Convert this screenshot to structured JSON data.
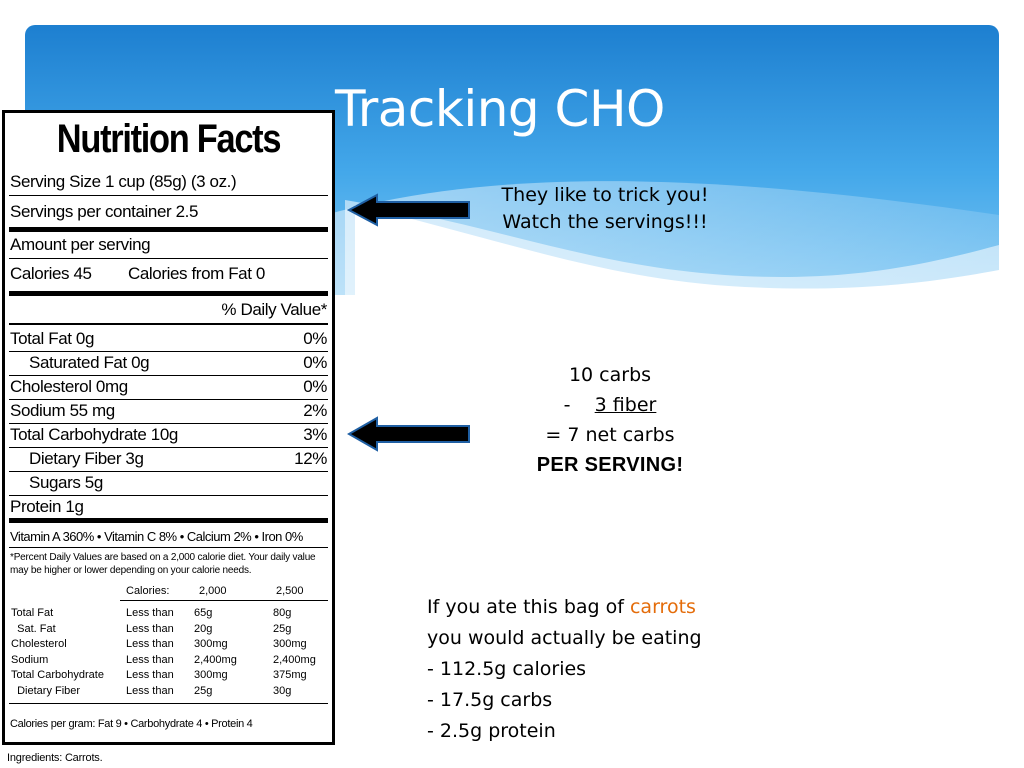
{
  "slide": {
    "title": "Tracking CHO",
    "accent_color": "#2a8fd8"
  },
  "label": {
    "title": "Nutrition Facts",
    "serving_size": "Serving Size  1 cup (85g)  (3 oz.)",
    "servings_per_container": "Servings per container  2.5",
    "amount_per_serving": "Amount per serving",
    "calories": "Calories  45",
    "calories_from_fat": "Calories from Fat 0",
    "daily_value_header": "% Daily Value*",
    "nutrients": [
      {
        "name": "Total Fat   0g",
        "dv": "0%"
      },
      {
        "name": "Saturated Fat  0g",
        "dv": "0%"
      },
      {
        "name": "Cholesterol  0mg",
        "dv": "0%"
      },
      {
        "name": "Sodium  55 mg",
        "dv": "2%"
      },
      {
        "name": "Total Carbohydrate  10g",
        "dv": "3%"
      },
      {
        "name": "Dietary Fiber  3g",
        "dv": "12%"
      },
      {
        "name": "Sugars  5g",
        "dv": ""
      },
      {
        "name": "Protein  1g",
        "dv": ""
      }
    ],
    "vitamins": "Vitamin A 360%  •  Vitamin C 8%  •  Calcium 2%  •  Iron 0%",
    "footnote_line1": "*Percent Daily Values are based on a 2,000 calorie  diet. Your daily value",
    "footnote_line2": "may be higher or lower depending on your calorie needs.",
    "table_header": {
      "label": "Calories:",
      "col1": "2,000",
      "col2": "2,500"
    },
    "table_rows": [
      {
        "name": "Total Fat",
        "cond": "Less than",
        "v1": "65g",
        "v2": "80g"
      },
      {
        "name": "  Sat. Fat",
        "cond": "Less than",
        "v1": "20g",
        "v2": "25g"
      },
      {
        "name": "Cholesterol",
        "cond": "Less than",
        "v1": "300mg",
        "v2": "300mg"
      },
      {
        "name": "Sodium",
        "cond": "Less than",
        "v1": "2,400mg",
        "v2": "2,400mg"
      },
      {
        "name": "Total Carbohydrate",
        "cond": "Less than",
        "v1": "300mg",
        "v2": "375mg"
      },
      {
        "name": "  Dietary Fiber",
        "cond": "Less than",
        "v1": "25g",
        "v2": "30g"
      }
    ],
    "calories_per_gram": "Calories per gram:    Fat 9  •  Carbohydrate 4  •  Protein 4",
    "ingredients": "Ingredients: Carrots."
  },
  "notes": {
    "trick_line1": "They like to trick you!",
    "trick_line2": "Watch the servings!!!",
    "carbs_line1": "10 carbs",
    "carbs_dash": "-    ",
    "carbs_fiber": "3 fiber",
    "carbs_net": "= 7 net carbs",
    "per_serving": "PER SERVING!",
    "bag_line1_pre": "If you ate this bag of ",
    "bag_line1_highlight": "carrots",
    "bag_line2": "you would actually be eating",
    "bag_items": [
      "- 112.5g calories",
      "- 17.5g carbs",
      "- 2.5g protein"
    ],
    "highlight_color": "#e46c0a"
  },
  "icons": [
    "left-arrow-icon",
    "left-arrow-icon"
  ]
}
